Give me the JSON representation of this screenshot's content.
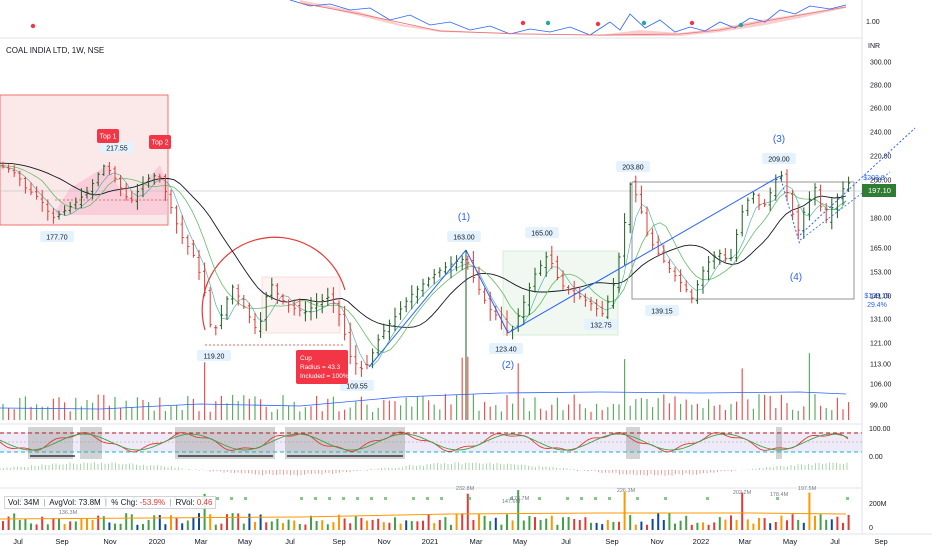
{
  "header": {
    "ticker": "COAL INDIA LTD, 1W, NSE"
  },
  "volume_legend": {
    "vol_label": "Vol:",
    "vol": "34M",
    "avg_label": "AvgVol:",
    "avg": "73.8M",
    "chg_label": "% Chg:",
    "chg": "-53.9%",
    "rvol_label": "RVol:",
    "rvol": "0.46"
  },
  "chart_data": {
    "type": "candlestick",
    "currency_label": "INR",
    "price_axis_ticks": [
      "300.00",
      "280.00",
      "260.00",
      "240.00",
      "220.00",
      "200.00",
      "180.00",
      "165.00",
      "153.00",
      "141.00",
      "131.00",
      "121.00",
      "113.00",
      "106.00",
      "99.00"
    ],
    "top_axis_tick": "1.00",
    "osc_axis_ticks": [
      "100.00",
      "0.00"
    ],
    "vol_axis_ticks": [
      "200M",
      "0"
    ],
    "time_axis_ticks": [
      "Jul",
      "Sep",
      "Nov",
      "2020",
      "Mar",
      "May",
      "Jul",
      "Sep",
      "Nov",
      "2021",
      "Mar",
      "May",
      "Jul",
      "Sep",
      "Nov",
      "2022",
      "Mar",
      "May",
      "Jul",
      "Sep"
    ],
    "last_price": "197.10",
    "target_label": [
      "$203.8",
      "3.4%"
    ],
    "downside_label": [
      "$139.15",
      "29.4%"
    ],
    "price_labels": [
      {
        "text": "217.55",
        "kind": "high"
      },
      {
        "text": "177.70",
        "kind": "low"
      },
      {
        "text": "119.20",
        "kind": "low"
      },
      {
        "text": "109.55",
        "kind": "low"
      },
      {
        "text": "163.00",
        "kind": "high"
      },
      {
        "text": "123.40",
        "kind": "low"
      },
      {
        "text": "165.00",
        "kind": "high"
      },
      {
        "text": "132.75",
        "kind": "low"
      },
      {
        "text": "203.80",
        "kind": "high"
      },
      {
        "text": "139.15",
        "kind": "low"
      },
      {
        "text": "209.00",
        "kind": "high"
      }
    ],
    "wave_labels": [
      "(1)",
      "(2)",
      "(3)",
      "(4)"
    ],
    "top_markers": [
      "Top 1",
      "Top 2"
    ],
    "cup_annotation": [
      "Cup",
      "Radius = 43.3",
      "Included = 100%"
    ],
    "volume_peak_labels": [
      "136.3M",
      "232.8M",
      "178.7M",
      "147.6M",
      "226.3M",
      "202.2M",
      "178.4M",
      "197.5M"
    ],
    "colors": {
      "up": "#1b5e20",
      "down": "#e53935",
      "ma_black": "#131722",
      "ma_green": "#66bb6a",
      "ma_blue": "#2962ff",
      "box_red": "#ef5350",
      "box_green": "#4caf50",
      "box_gray": "#787b86",
      "label_red": "#f23645"
    }
  }
}
